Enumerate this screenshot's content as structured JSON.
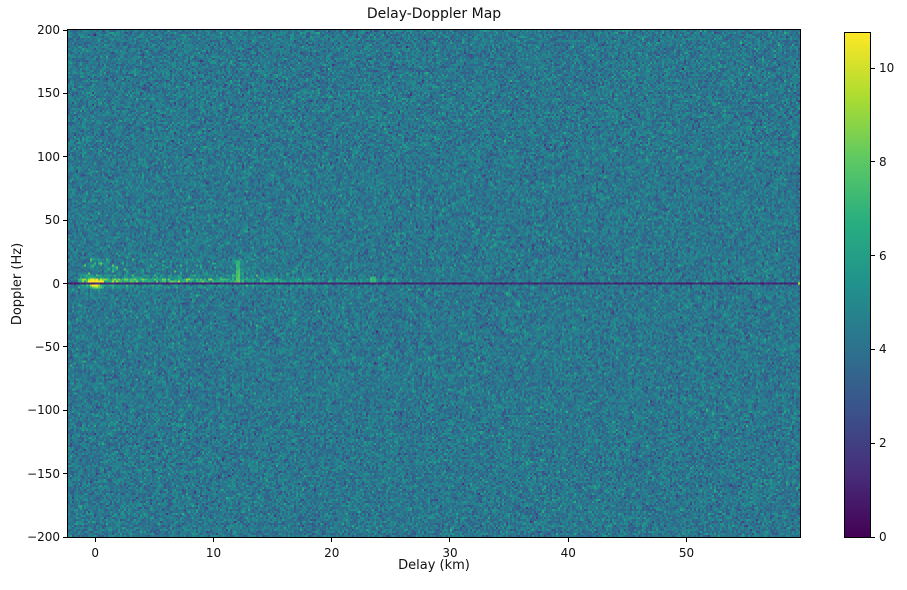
{
  "chart_data": {
    "type": "heatmap",
    "title": "Delay-Doppler Map",
    "xlabel": "Delay (km)",
    "ylabel": "Doppler (Hz)",
    "xlim": [
      -2.3,
      59.6
    ],
    "ylim": [
      -200,
      200
    ],
    "x_ticks": [
      {
        "v": 0,
        "label": "0"
      },
      {
        "v": 10,
        "label": "10"
      },
      {
        "v": 20,
        "label": "20"
      },
      {
        "v": 30,
        "label": "30"
      },
      {
        "v": 40,
        "label": "40"
      },
      {
        "v": 50,
        "label": "50"
      }
    ],
    "y_ticks": [
      {
        "v": 200,
        "label": "200"
      },
      {
        "v": 150,
        "label": "150"
      },
      {
        "v": 100,
        "label": "100"
      },
      {
        "v": 50,
        "label": "50"
      },
      {
        "v": 0,
        "label": "0"
      },
      {
        "v": -50,
        "label": "−50"
      },
      {
        "v": -100,
        "label": "−100"
      },
      {
        "v": -150,
        "label": "−150"
      },
      {
        "v": -200,
        "label": "−200"
      }
    ],
    "colorbar": {
      "vmin": 0,
      "vmax": 10.75,
      "ticks": [
        {
          "v": 0,
          "label": "0"
        },
        {
          "v": 2,
          "label": "2"
        },
        {
          "v": 4,
          "label": "4"
        },
        {
          "v": 6,
          "label": "6"
        },
        {
          "v": 8,
          "label": "8"
        },
        {
          "v": 10,
          "label": "10"
        }
      ],
      "colormap": "viridis",
      "stops": [
        {
          "t": 0.0,
          "color": "#440154"
        },
        {
          "t": 0.125,
          "color": "#472d7b"
        },
        {
          "t": 0.25,
          "color": "#3b528b"
        },
        {
          "t": 0.375,
          "color": "#2c728e"
        },
        {
          "t": 0.5,
          "color": "#21918c"
        },
        {
          "t": 0.625,
          "color": "#28ae80"
        },
        {
          "t": 0.75,
          "color": "#5ec962"
        },
        {
          "t": 0.875,
          "color": "#addc30"
        },
        {
          "t": 1.0,
          "color": "#fde725"
        }
      ]
    },
    "grid": {
      "cols": 366,
      "rows": 253
    },
    "noise_seed": 1337,
    "features": [
      {
        "type": "background",
        "mean": 4.25,
        "std": 0.75
      },
      {
        "type": "zero_doppler_line",
        "doppler_hz": 0,
        "halfwidth_hz": 0.8,
        "value": 0.7
      },
      {
        "type": "direct_path_peak",
        "delay_km": 0,
        "doppler_hz": 0,
        "peak_value": 10.7,
        "sigma_delay_km": 0.35,
        "sigma_doppler_hz": 2.2
      },
      {
        "type": "near_zero_band",
        "delay_range_km": [
          -1.5,
          28
        ],
        "doppler_range_hz": [
          -4.5,
          6.5
        ],
        "max_boost": 3.6
      },
      {
        "type": "speckle_band",
        "delay_range_km": [
          -1,
          26
        ],
        "doppler_range_hz": [
          6,
          20
        ],
        "density": 0.12,
        "boost": 2.2
      },
      {
        "type": "target_streak",
        "delay_km": 12,
        "doppler_range_hz": [
          1,
          18
        ],
        "value": 8.2
      },
      {
        "type": "target_blip",
        "delay_km": 23.5,
        "doppler_range_hz": [
          1,
          6
        ],
        "value": 7.0
      },
      {
        "type": "edge_dot",
        "delay_km": 59.5,
        "doppler_hz": 0,
        "value": 9.5
      }
    ]
  }
}
